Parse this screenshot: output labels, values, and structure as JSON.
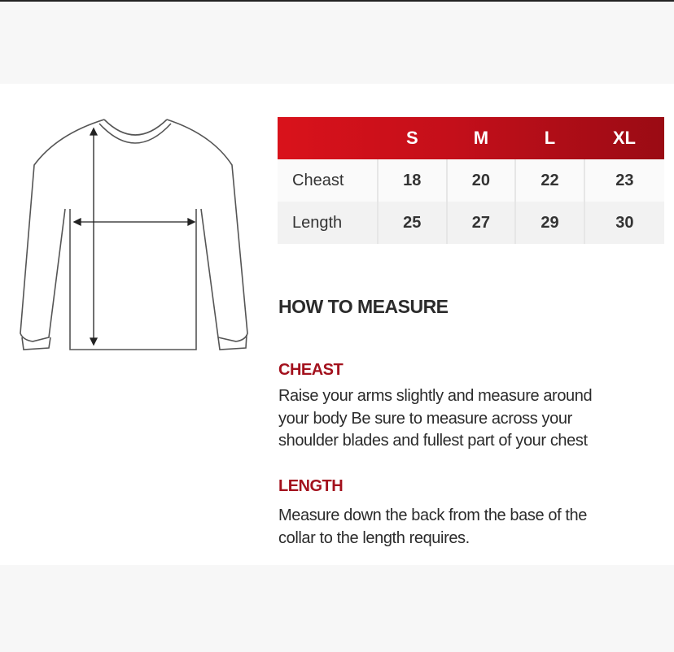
{
  "size_table": {
    "headers": [
      "",
      "S",
      "M",
      "L",
      "XL"
    ],
    "rows": [
      {
        "label": "Cheast",
        "values": [
          "18",
          "20",
          "22",
          "23"
        ]
      },
      {
        "label": "Length",
        "values": [
          "25",
          "27",
          "29",
          "30"
        ]
      }
    ],
    "header_color": "#c40f1a"
  },
  "how_to": {
    "title": "HOW TO MEASURE",
    "sections": [
      {
        "heading": "CHEAST",
        "lines": [
          "Raise your arms slightly and measure around",
          "your body Be sure to measure across your",
          "shoulder blades and fullest part of your chest"
        ]
      },
      {
        "heading": "LENGTH",
        "lines": [
          "Measure down the back from the base of the",
          "collar to the length requires."
        ]
      }
    ],
    "accent_color": "#a3111d"
  },
  "illustration": "sweater-outline-with-measurement-arrows"
}
